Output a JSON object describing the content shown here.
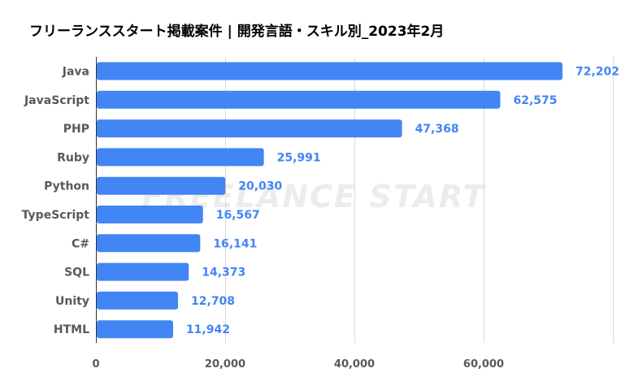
{
  "chart_data": {
    "type": "bar",
    "orientation": "horizontal",
    "title": "フリーランススタート掲載案件 | 開発言語・スキル別_2023年2月",
    "categories": [
      "Java",
      "JavaScript",
      "PHP",
      "Ruby",
      "Python",
      "TypeScript",
      "C#",
      "SQL",
      "Unity",
      "HTML"
    ],
    "values": [
      72202,
      62575,
      47368,
      25991,
      20030,
      16567,
      16141,
      14373,
      12708,
      11942
    ],
    "value_labels": [
      "72,202",
      "62,575",
      "47,368",
      "25,991",
      "20,030",
      "16,567",
      "16,141",
      "14,373",
      "12,708",
      "11,942"
    ],
    "xlim": [
      0,
      80000
    ],
    "xticks": [
      0,
      20000,
      40000,
      60000
    ],
    "xtick_labels": [
      "0",
      "20,000",
      "40,000",
      "60,000"
    ],
    "grid": true,
    "xlabel": "",
    "ylabel": "",
    "watermark": "FREELANCE START",
    "bar_color": "#4285f4",
    "label_color": "#4285f4",
    "grid_color": "#d9d9d9"
  }
}
